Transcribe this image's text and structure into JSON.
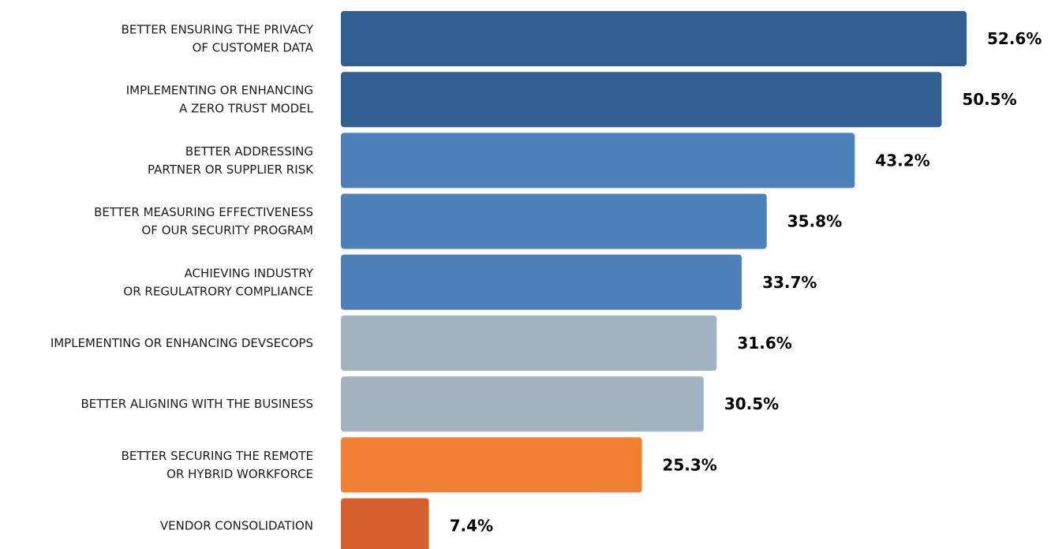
{
  "chart_data": {
    "type": "bar",
    "orientation": "horizontal",
    "categories": [
      [
        "BETTER ENSURING THE PRIVACY",
        "OF CUSTOMER DATA"
      ],
      [
        "IMPLEMENTING OR ENHANCING",
        "A ZERO TRUST MODEL"
      ],
      [
        "BETTER ADDRESSING",
        "PARTNER OR SUPPLIER RISK"
      ],
      [
        "BETTER MEASURING EFFECTIVENESS",
        "OF OUR SECURITY PROGRAM"
      ],
      [
        "ACHIEVING INDUSTRY",
        "OR REGULATRORY COMPLIANCE"
      ],
      [
        "IMPLEMENTING OR ENHANCING DEVSECOPS"
      ],
      [
        "BETTER ALIGNING WITH THE BUSINESS"
      ],
      [
        "BETTER SECURING THE REMOTE",
        "OR HYBRID WORKFORCE"
      ],
      [
        "VENDOR CONSOLIDATION"
      ]
    ],
    "values": [
      52.6,
      50.5,
      43.2,
      35.8,
      33.7,
      31.6,
      30.5,
      25.3,
      7.4
    ],
    "value_labels": [
      "52.6%",
      "50.5%",
      "43.2%",
      "35.8%",
      "33.7%",
      "31.6%",
      "30.5%",
      "25.3%",
      "7.4%"
    ],
    "colors": [
      "#315f8f",
      "#315f8f",
      "#4e81ba",
      "#4e81ba",
      "#4e81ba",
      "#a2b4c1",
      "#a2b4c1",
      "#f07f32",
      "#d5602e"
    ],
    "title": "",
    "xlabel": "",
    "ylabel": "",
    "xlim": [
      0,
      60
    ],
    "grid": false,
    "legend": "none"
  }
}
